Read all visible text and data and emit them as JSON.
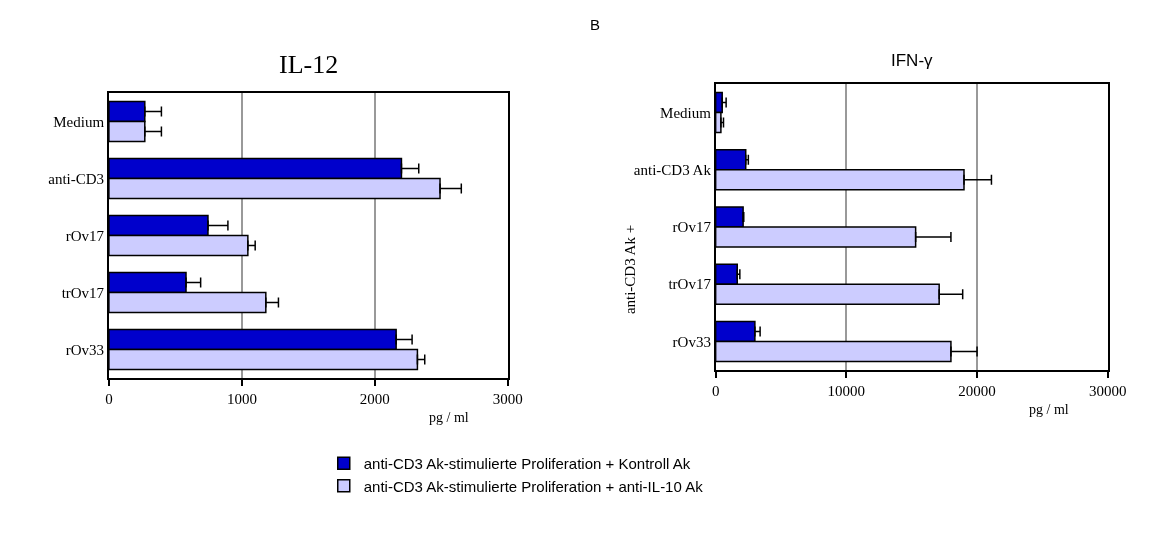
{
  "chart_data": [
    {
      "type": "bar",
      "orientation": "horizontal",
      "title": "IL-12",
      "xlabel": "pg / ml",
      "categories": [
        "Medium",
        "anti-CD3",
        "rOv17",
        "trOv17",
        "rOv33"
      ],
      "series": [
        {
          "name": "anti-CD3 Ak-stimulierte Proliferation + Kontroll Ak",
          "color": "#0000cc",
          "values": [
            270,
            2200,
            745,
            580,
            2160
          ],
          "errors": [
            [
              270,
              395
            ],
            [
              2200,
              2330
            ],
            [
              745,
              895
            ],
            [
              580,
              690
            ],
            [
              2160,
              2280
            ]
          ]
        },
        {
          "name": "anti-CD3 Ak-stimulierte Proliferation + anti-IL-10 Ak",
          "color": "#ccccff",
          "values": [
            270,
            2490,
            1045,
            1180,
            2320
          ],
          "errors": [
            [
              270,
              395
            ],
            [
              2490,
              2650
            ],
            [
              1045,
              1100
            ],
            [
              1180,
              1275
            ],
            [
              2320,
              2375
            ]
          ]
        }
      ],
      "xlim": [
        0,
        3000
      ],
      "xticks": [
        0,
        1000,
        2000,
        3000
      ],
      "grid": "x",
      "legend": "bottom"
    },
    {
      "type": "bar",
      "orientation": "horizontal",
      "title": "IFN-γ",
      "xlabel": "pg / ml",
      "ylabel": "anti-CD3 Ak +",
      "annotations": [
        "B"
      ],
      "categories": [
        "Medium",
        "anti-CD3 Ak",
        "rOv17",
        "trOv17",
        "rOv33"
      ],
      "series": [
        {
          "color": "#0000cc",
          "values": [
            500,
            2300,
            2100,
            1650,
            3000
          ],
          "errors": [
            [
              500,
              800
            ],
            [
              2300,
              2500
            ],
            [
              2100,
              2150
            ],
            [
              1650,
              1850
            ],
            [
              3000,
              3400
            ]
          ]
        },
        {
          "color": "#ccccff",
          "values": [
            400,
            19000,
            15300,
            17100,
            18000
          ],
          "errors": [
            [
              400,
              600
            ],
            [
              19000,
              21100
            ],
            [
              15300,
              18000
            ],
            [
              17100,
              18900
            ],
            [
              18000,
              20000
            ]
          ]
        }
      ],
      "xlim": [
        0,
        30000
      ],
      "xticks": [
        0,
        10000,
        20000,
        30000
      ],
      "grid": "x",
      "legend": false
    }
  ]
}
